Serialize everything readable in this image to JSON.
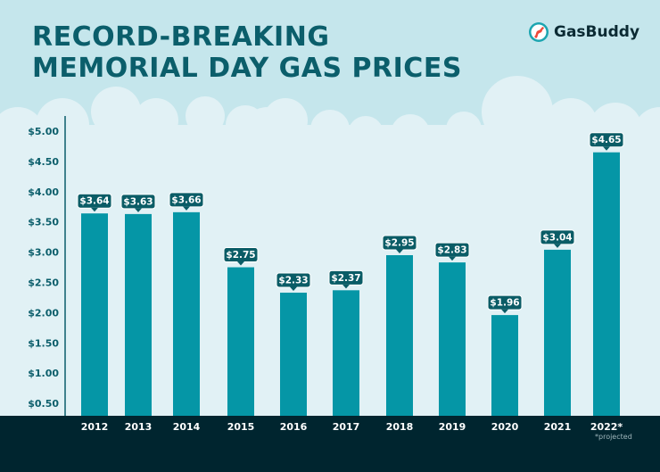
{
  "title_line1": "RECORD-BREAKING",
  "title_line2": "MEMORIAL DAY GAS PRICES",
  "logo": "GasBuddy",
  "colors": {
    "background": "#c5e6ec",
    "plot_area": "#e1f1f5",
    "bar": "#0596a6",
    "label_bg": "#0a5c66",
    "title": "#0b5e6b",
    "footer": "#00252f"
  },
  "chart_data": {
    "type": "bar",
    "title": "RECORD-BREAKING MEMORIAL DAY GAS PRICES",
    "xlabel": "",
    "ylabel": "",
    "categories": [
      "2012",
      "2013",
      "2014",
      "2015",
      "2016",
      "2017",
      "2018",
      "2019",
      "2020",
      "2021",
      "2022*"
    ],
    "values": [
      3.64,
      3.63,
      3.66,
      2.75,
      2.33,
      2.37,
      2.95,
      2.83,
      1.96,
      3.04,
      4.65
    ],
    "data_labels": [
      "$3.64",
      "$3.63",
      "$3.66",
      "$2.75",
      "$2.33",
      "$2.37",
      "$2.95",
      "$2.83",
      "$1.96",
      "$3.04",
      "$4.65"
    ],
    "yticks": [
      "$0.50",
      "$1.00",
      "$1.50",
      "$2.00",
      "$2.50",
      "$3.00",
      "$3.50",
      "$4.00",
      "$4.50",
      "$5.00"
    ],
    "ytick_values": [
      0.5,
      1,
      1.5,
      2,
      2.5,
      3,
      3.5,
      4,
      4.5,
      5
    ],
    "ylim": [
      0.5,
      5.0
    ],
    "grid": false,
    "legend": "none",
    "footnote": "*projected"
  }
}
